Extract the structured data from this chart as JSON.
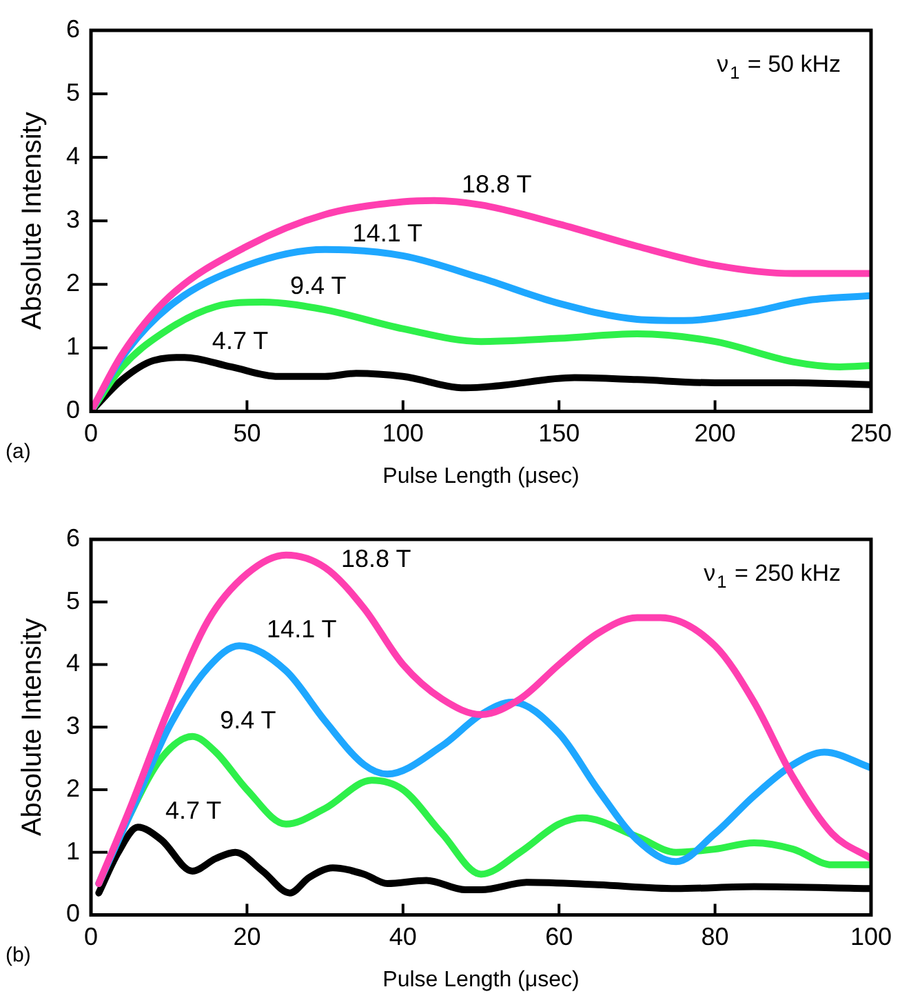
{
  "chart_data": [
    {
      "type": "line",
      "xlabel": "Pulse Length (μsec)",
      "ylabel": "Absolute Intensity",
      "xlim": [
        0,
        250
      ],
      "xticks": [
        0,
        50,
        100,
        150,
        200,
        250
      ],
      "ylim": [
        0,
        6
      ],
      "yticks": [
        0,
        1,
        2,
        3,
        4,
        5,
        6
      ],
      "grid": false,
      "legend": false,
      "marker": "none",
      "line_style": "solid",
      "annotations": [
        "ν$_{1}$ = 50 kHz",
        "(a)"
      ],
      "series": [
        {
          "name": "18.8 T",
          "color": "#ff3fb0",
          "x": [
            0,
            10,
            25,
            50,
            75,
            100,
            110,
            125,
            150,
            175,
            200,
            225,
            250
          ],
          "values": [
            0,
            0.9,
            1.8,
            2.6,
            3.1,
            3.3,
            3.32,
            3.25,
            2.95,
            2.6,
            2.3,
            2.17,
            2.17
          ]
        },
        {
          "name": "14.1 T",
          "color": "#1ea7ff",
          "x": [
            0,
            10,
            25,
            50,
            75,
            100,
            125,
            150,
            175,
            190,
            210,
            230,
            250
          ],
          "values": [
            0,
            0.85,
            1.65,
            2.3,
            2.55,
            2.45,
            2.1,
            1.7,
            1.45,
            1.43,
            1.55,
            1.75,
            1.82
          ]
        },
        {
          "name": "9.4 T",
          "color": "#2ef04a",
          "x": [
            0,
            10,
            25,
            40,
            55,
            75,
            100,
            125,
            150,
            175,
            200,
            225,
            240,
            250
          ],
          "values": [
            0,
            0.7,
            1.3,
            1.65,
            1.72,
            1.6,
            1.3,
            1.1,
            1.15,
            1.22,
            1.1,
            0.78,
            0.7,
            0.72
          ]
        },
        {
          "name": "4.7 T",
          "color": "#000000",
          "x": [
            0,
            10,
            20,
            30,
            45,
            60,
            75,
            85,
            100,
            120,
            130,
            155,
            175,
            200,
            225,
            250
          ],
          "values": [
            0,
            0.5,
            0.8,
            0.85,
            0.7,
            0.55,
            0.55,
            0.6,
            0.55,
            0.37,
            0.4,
            0.53,
            0.5,
            0.45,
            0.45,
            0.42
          ]
        }
      ]
    },
    {
      "type": "line",
      "xlabel": "Pulse Length (μsec)",
      "ylabel": "Absolute Intensity",
      "xlim": [
        0,
        100
      ],
      "xticks": [
        0,
        20,
        40,
        60,
        80,
        100
      ],
      "ylim": [
        0,
        6
      ],
      "yticks": [
        0,
        1,
        2,
        3,
        4,
        5,
        6
      ],
      "grid": false,
      "legend": false,
      "marker": "none",
      "line_style": "solid",
      "annotations": [
        "ν$_{1}$ = 250 kHz",
        "(b)"
      ],
      "series": [
        {
          "name": "18.8 T",
          "color": "#ff3fb0",
          "x": [
            1,
            5,
            10,
            15,
            20,
            25,
            30,
            35,
            40,
            45,
            50,
            55,
            60,
            65,
            70,
            73,
            80,
            85,
            90,
            95,
            100
          ],
          "values": [
            0.5,
            1.7,
            3.3,
            4.7,
            5.45,
            5.75,
            5.55,
            4.9,
            4.0,
            3.45,
            3.2,
            3.45,
            4.0,
            4.5,
            4.75,
            4.75,
            4.3,
            3.4,
            2.2,
            1.3,
            0.9
          ]
        },
        {
          "name": "14.1 T",
          "color": "#1ea7ff",
          "x": [
            1,
            5,
            10,
            15,
            19,
            25,
            30,
            35,
            38,
            45,
            50,
            54,
            60,
            65,
            70,
            75,
            80,
            85,
            90,
            94,
            100
          ],
          "values": [
            0.5,
            1.6,
            3.0,
            3.95,
            4.3,
            3.9,
            3.1,
            2.4,
            2.25,
            2.7,
            3.2,
            3.4,
            2.9,
            2.0,
            1.2,
            0.85,
            1.3,
            1.9,
            2.4,
            2.6,
            2.35
          ]
        },
        {
          "name": "9.4 T",
          "color": "#2ef04a",
          "x": [
            1,
            5,
            9,
            13,
            16,
            20,
            25,
            30,
            36,
            40,
            45,
            50,
            55,
            60,
            63,
            70,
            75,
            80,
            85,
            90,
            95,
            100
          ],
          "values": [
            0.5,
            1.6,
            2.5,
            2.85,
            2.6,
            2.0,
            1.45,
            1.7,
            2.15,
            2.0,
            1.3,
            0.65,
            1.0,
            1.45,
            1.55,
            1.25,
            1.0,
            1.05,
            1.15,
            1.05,
            0.8,
            0.8
          ]
        },
        {
          "name": "4.7 T",
          "color": "#000000",
          "x": [
            1,
            3.5,
            6,
            9,
            13,
            16,
            18.5,
            22,
            25.5,
            28,
            31,
            35,
            38,
            43,
            48,
            50,
            56,
            65,
            75,
            85,
            100
          ],
          "values": [
            0.35,
            1.0,
            1.4,
            1.2,
            0.7,
            0.9,
            1.0,
            0.7,
            0.35,
            0.6,
            0.75,
            0.65,
            0.5,
            0.55,
            0.4,
            0.4,
            0.52,
            0.48,
            0.42,
            0.45,
            0.42
          ]
        }
      ]
    }
  ]
}
